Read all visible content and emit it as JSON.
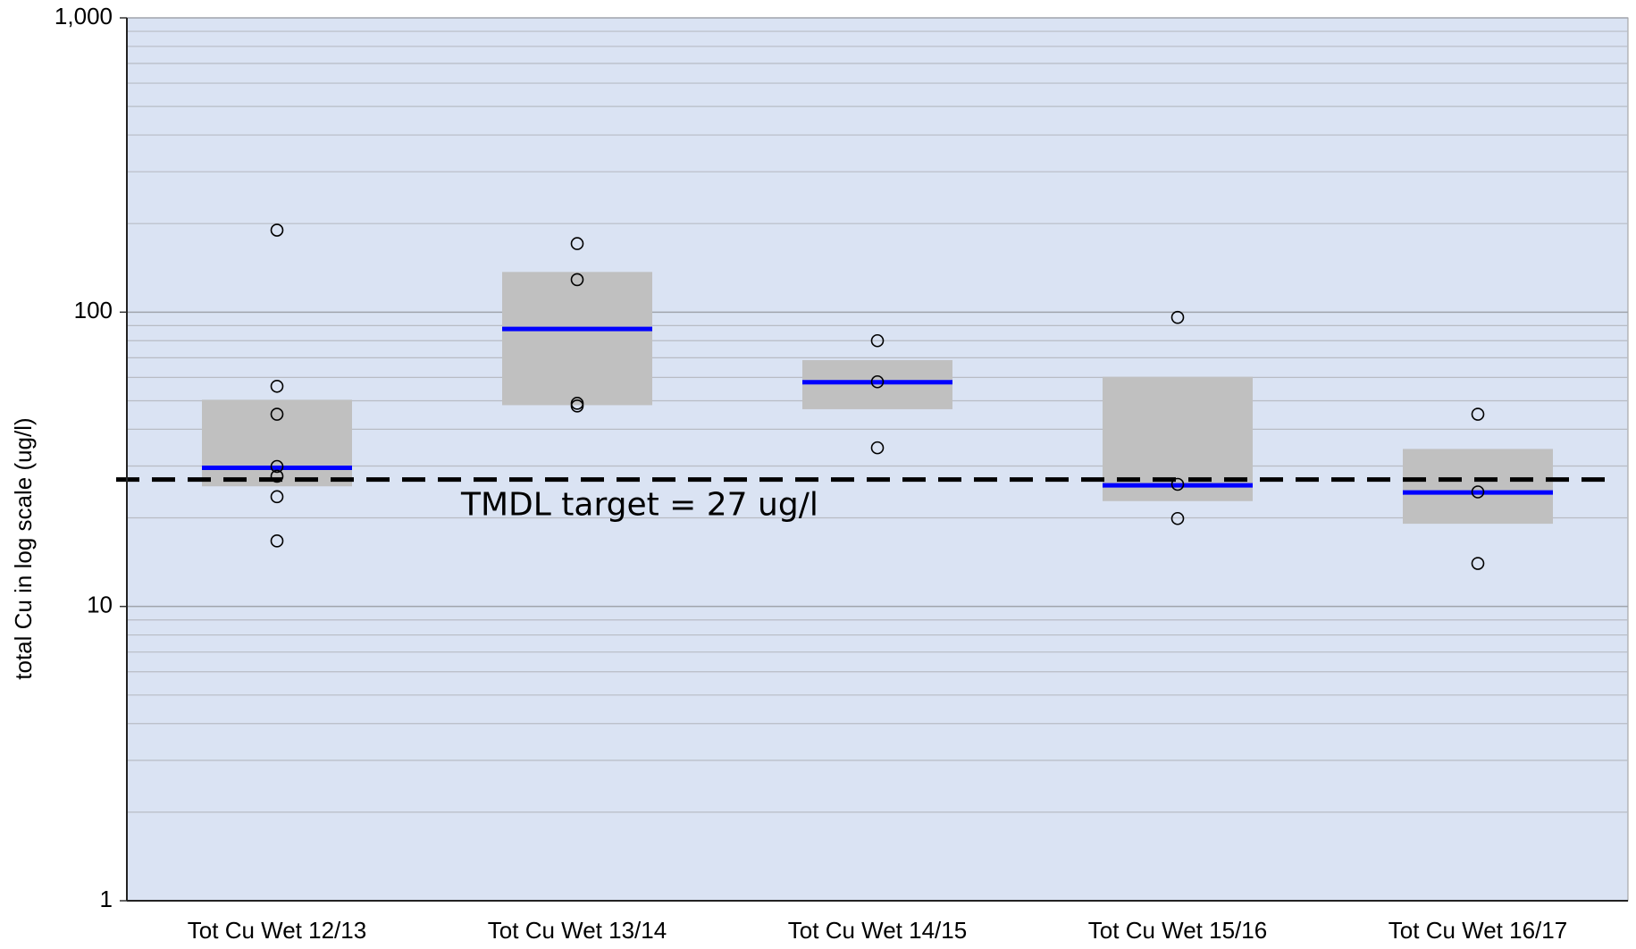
{
  "chart_data": {
    "type": "box",
    "y_label": "total Cu in log scale (ug/l)",
    "categories": [
      "Tot Cu Wet 12/13",
      "Tot Cu Wet 13/14",
      "Tot Cu Wet 14/15",
      "Tot Cu Wet 15/16",
      "Tot Cu Wet 16/17"
    ],
    "boxes": [
      {
        "q1": 25.6,
        "median": 29.6,
        "q3": 50.4,
        "points": [
          190,
          56,
          45,
          29.9,
          27.7,
          23.6,
          16.7
        ]
      },
      {
        "q1": 48.3,
        "median": 87.7,
        "q3": 137,
        "points": [
          171,
          129,
          49,
          48
        ]
      },
      {
        "q1": 46.8,
        "median": 57.8,
        "q3": 68.7,
        "points": [
          80,
          58,
          34.6
        ]
      },
      {
        "q1": 22.8,
        "median": 25.8,
        "q3": 60.3,
        "points": [
          96,
          26,
          19.9
        ]
      },
      {
        "q1": 19.1,
        "median": 24.4,
        "q3": 34.3,
        "points": [
          45,
          24.5,
          14
        ]
      }
    ],
    "threshold": {
      "value": 27,
      "label": "TMDL target = 27 ug/l",
      "color": "#000000"
    },
    "ylim": [
      1,
      1000
    ],
    "log_scale": true,
    "yticks": [
      1,
      10,
      100,
      {
        "value": 1000,
        "label": "1,000"
      }
    ],
    "minor_yticks": [
      2,
      3,
      4,
      5,
      6,
      7,
      8,
      9,
      20,
      30,
      40,
      50,
      60,
      70,
      80,
      90,
      200,
      300,
      400,
      500,
      600,
      700,
      800,
      900
    ],
    "grid": true,
    "box_color": "#c0c0c0",
    "median_color": "#0000ff",
    "point_color": "#000000",
    "background_color": "#dae3f3"
  }
}
